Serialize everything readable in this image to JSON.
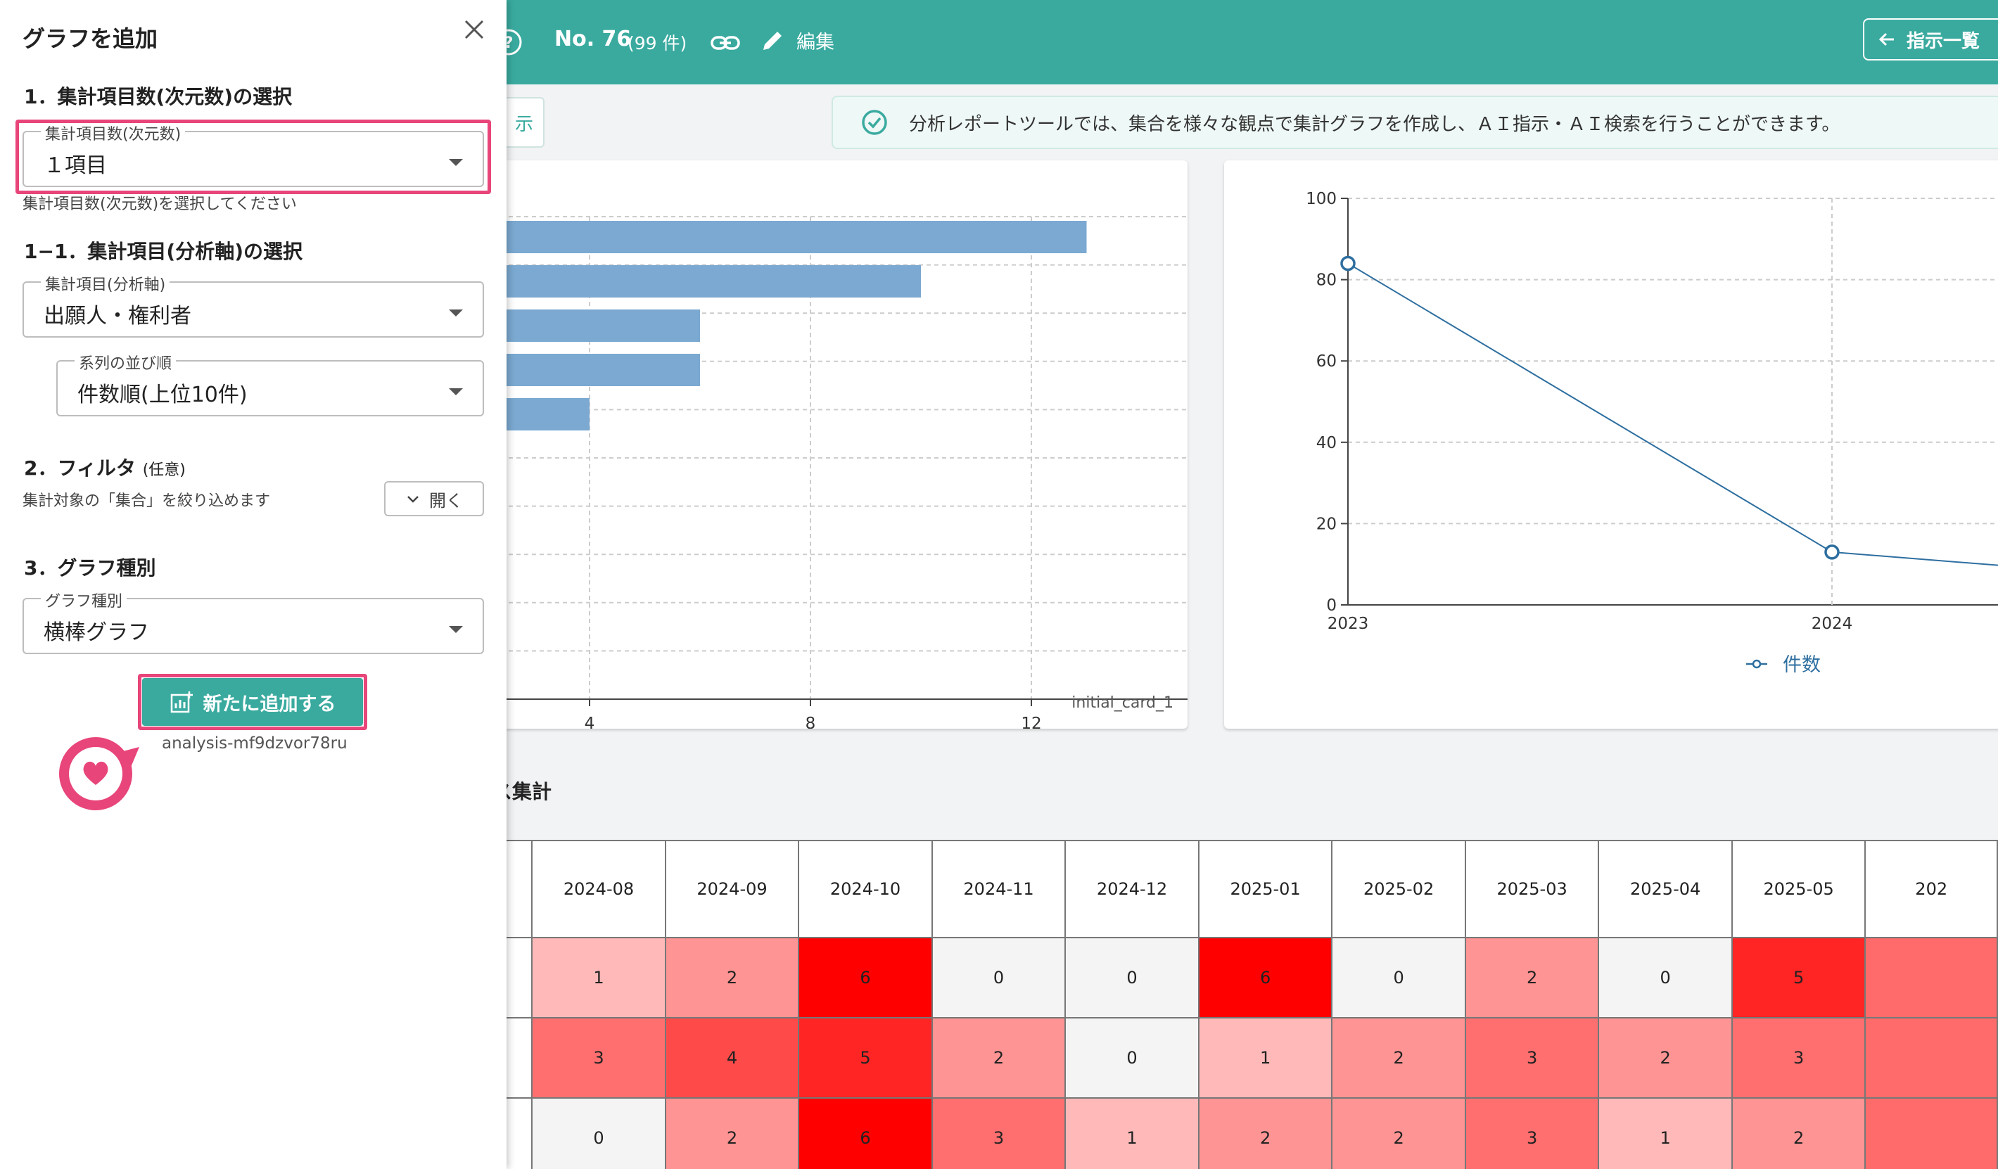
{
  "header": {
    "doc_no": "No. 76",
    "doc_count": "(99 件)",
    "edit_label": "編集",
    "instr_list_label": "指示一覧"
  },
  "toolbar": {
    "left_fragment_label": "示"
  },
  "banner": {
    "text": "分析レポートツールでは、集合を様々な観点で集計グラフを作成し、ＡＩ指示・ＡＩ検索を行うことができます。"
  },
  "bar_card": {
    "id_label": "initial_card_1"
  },
  "chart_data": [
    {
      "type": "bar",
      "orientation": "horizontal",
      "values": [
        13,
        10,
        6,
        6,
        4
      ],
      "xlim": [
        0,
        16
      ],
      "x_ticks": [
        "4",
        "8",
        "12",
        "16"
      ],
      "grid": true,
      "color": "#7ba9d1"
    },
    {
      "type": "line",
      "x": [
        "2023",
        "2024"
      ],
      "series": [
        {
          "name": "件数",
          "values": [
            84,
            13
          ]
        }
      ],
      "ylim": [
        0,
        100
      ],
      "y_ticks": [
        "0",
        "20",
        "40",
        "60",
        "80",
        "100"
      ],
      "grid": true,
      "legend": "bottom",
      "color": "#2e6fa0"
    }
  ],
  "table": {
    "title": "ス集計",
    "columns": [
      "2024-08",
      "2024-09",
      "2024-10",
      "2024-11",
      "2024-12",
      "2025-01",
      "2025-02",
      "2025-03",
      "2025-04",
      "2025-05",
      "202"
    ],
    "rows": [
      [
        "1",
        "2",
        "6",
        "0",
        "0",
        "6",
        "0",
        "2",
        "0",
        "5",
        ""
      ],
      [
        "3",
        "4",
        "5",
        "2",
        "0",
        "1",
        "2",
        "3",
        "2",
        "3",
        ""
      ],
      [
        "0",
        "2",
        "6",
        "3",
        "1",
        "2",
        "2",
        "3",
        "1",
        "2",
        ""
      ]
    ],
    "max_value": 6,
    "heat_color_max": "#ff0000",
    "heat_color_zero": "#f4f4f4"
  },
  "drawer": {
    "title": "グラフを追加",
    "section1_title": "1．集計項目数(次元数)の選択",
    "dims_label": "集計項目数(次元数)",
    "dims_value": "１項目",
    "dims_helper": "集計項目数(次元数)を選択してください",
    "section11_title": "1−1．集計項目(分析軸)の選択",
    "axis_label": "集計項目(分析軸)",
    "axis_value": "出願人・権利者",
    "order_label": "系列の並び順",
    "order_value": "件数順(上位10件)",
    "section2_title": "2．フィルタ",
    "section2_optional": "(任意)",
    "filter_helper": "集計対象の「集合」を絞り込めます",
    "filter_open_label": "開く",
    "section3_title": "3．グラフ種別",
    "chart_type_label": "グラフ種別",
    "chart_type_value": "横棒グラフ",
    "add_button_label": "新たに追加する",
    "analysis_id": "analysis-mf9dzvor78ru"
  },
  "colors": {
    "brand": "#3aaa9f",
    "highlight": "#e8457a"
  }
}
